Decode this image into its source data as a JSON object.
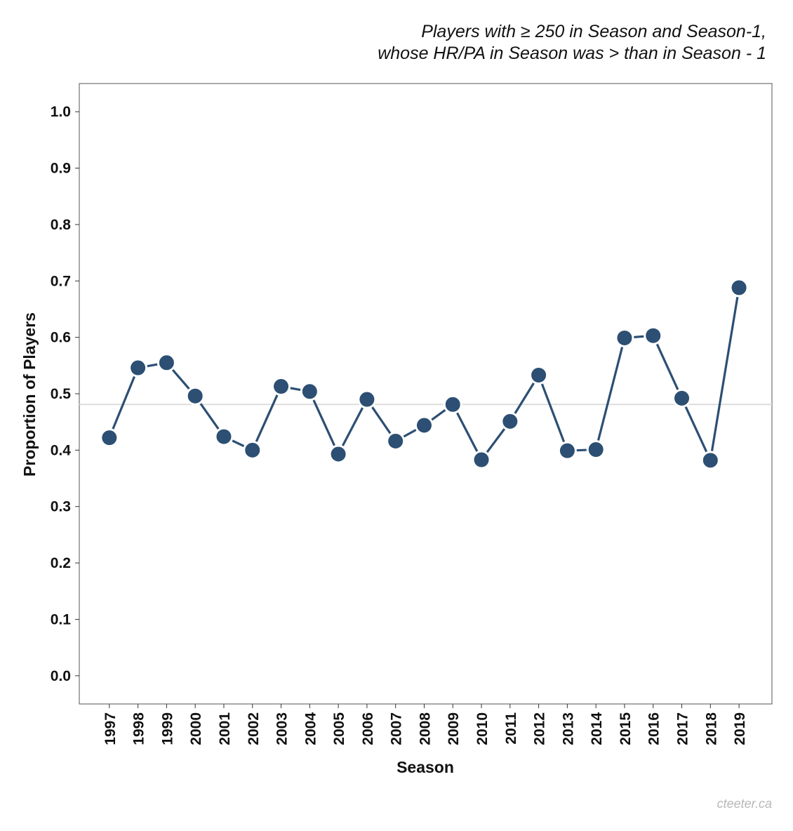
{
  "subtitle_lines": [
    "Players with ≥ 250 in Season and Season-1,",
    "whose HR/PA in Season was > than in Season - 1"
  ],
  "credit": "cteeter.ca",
  "chart_data": {
    "type": "line",
    "xlabel": "Season",
    "ylabel": "Proportion of Players",
    "ylim": [
      -0.05,
      1.05
    ],
    "y_ticks": [
      "0.0",
      "0.1",
      "0.2",
      "0.3",
      "0.4",
      "0.5",
      "0.6",
      "0.7",
      "0.8",
      "0.9",
      "1.0"
    ],
    "reference_line": 0.481,
    "grid": false,
    "colors": {
      "line": "#2c4f73",
      "marker_stroke": "#ffffff",
      "reference": "#dddddd",
      "frame": "#555555"
    },
    "categories": [
      "1997",
      "1998",
      "1999",
      "2000",
      "2001",
      "2002",
      "2003",
      "2004",
      "2005",
      "2006",
      "2007",
      "2008",
      "2009",
      "2010",
      "2011",
      "2012",
      "2013",
      "2014",
      "2015",
      "2016",
      "2017",
      "2018",
      "2019"
    ],
    "values": [
      0.422,
      0.546,
      0.555,
      0.496,
      0.424,
      0.4,
      0.513,
      0.504,
      0.393,
      0.49,
      0.416,
      0.444,
      0.481,
      0.383,
      0.451,
      0.533,
      0.399,
      0.401,
      0.599,
      0.603,
      0.492,
      0.382,
      0.688
    ]
  }
}
